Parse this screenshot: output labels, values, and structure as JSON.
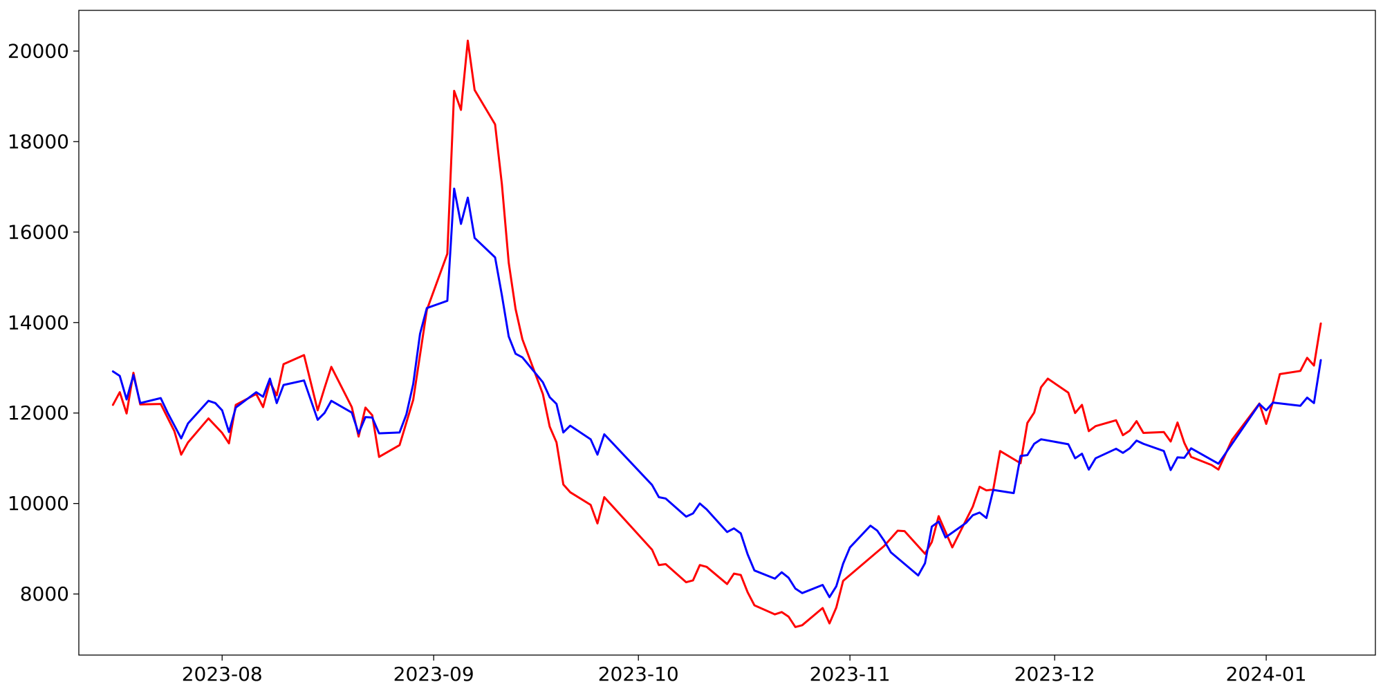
{
  "chart_data": {
    "type": "line",
    "title": "",
    "xlabel": "",
    "ylabel": "",
    "xlim": [
      "2023-07-11",
      "2024-01-17"
    ],
    "ylim": [
      6650,
      20900
    ],
    "grid": false,
    "legend": "none",
    "x_ticks": [
      "2023-08",
      "2023-09",
      "2023-10",
      "2023-11",
      "2023-12",
      "2024-01"
    ],
    "y_ticks": [
      8000,
      10000,
      12000,
      14000,
      16000,
      18000,
      20000
    ],
    "series": [
      {
        "color": "#ff0000",
        "points": [
          [
            "2023-07-16",
            12180
          ],
          [
            "2023-07-17",
            12460
          ],
          [
            "2023-07-18",
            11990
          ],
          [
            "2023-07-19",
            12890
          ],
          [
            "2023-07-20",
            12190
          ],
          [
            "2023-07-23",
            12200
          ],
          [
            "2023-07-25",
            11600
          ],
          [
            "2023-07-26",
            11080
          ],
          [
            "2023-07-27",
            11350
          ],
          [
            "2023-07-30",
            11880
          ],
          [
            "2023-08-01",
            11560
          ],
          [
            "2023-08-02",
            11330
          ],
          [
            "2023-08-03",
            12180
          ],
          [
            "2023-08-06",
            12420
          ],
          [
            "2023-08-07",
            12130
          ],
          [
            "2023-08-08",
            12690
          ],
          [
            "2023-08-09",
            12390
          ],
          [
            "2023-08-10",
            13080
          ],
          [
            "2023-08-13",
            13280
          ],
          [
            "2023-08-15",
            12060
          ],
          [
            "2023-08-16",
            12550
          ],
          [
            "2023-08-17",
            13020
          ],
          [
            "2023-08-20",
            12130
          ],
          [
            "2023-08-21",
            11480
          ],
          [
            "2023-08-22",
            12120
          ],
          [
            "2023-08-23",
            11950
          ],
          [
            "2023-08-24",
            11030
          ],
          [
            "2023-08-27",
            11290
          ],
          [
            "2023-08-29",
            12290
          ],
          [
            "2023-08-31",
            14280
          ],
          [
            "2023-09-03",
            15520
          ],
          [
            "2023-09-04",
            19120
          ],
          [
            "2023-09-05",
            18700
          ],
          [
            "2023-09-06",
            20230
          ],
          [
            "2023-09-07",
            19140
          ],
          [
            "2023-09-10",
            18380
          ],
          [
            "2023-09-11",
            17050
          ],
          [
            "2023-09-12",
            15320
          ],
          [
            "2023-09-13",
            14300
          ],
          [
            "2023-09-14",
            13630
          ],
          [
            "2023-09-17",
            12420
          ],
          [
            "2023-09-18",
            11700
          ],
          [
            "2023-09-19",
            11350
          ],
          [
            "2023-09-20",
            10420
          ],
          [
            "2023-09-21",
            10250
          ],
          [
            "2023-09-24",
            9970
          ],
          [
            "2023-09-25",
            9560
          ],
          [
            "2023-09-26",
            10140
          ],
          [
            "2023-10-03",
            8980
          ],
          [
            "2023-10-04",
            8640
          ],
          [
            "2023-10-05",
            8660
          ],
          [
            "2023-10-08",
            8260
          ],
          [
            "2023-10-09",
            8300
          ],
          [
            "2023-10-10",
            8640
          ],
          [
            "2023-10-11",
            8600
          ],
          [
            "2023-10-14",
            8220
          ],
          [
            "2023-10-15",
            8450
          ],
          [
            "2023-10-16",
            8420
          ],
          [
            "2023-10-17",
            8040
          ],
          [
            "2023-10-18",
            7750
          ],
          [
            "2023-10-21",
            7550
          ],
          [
            "2023-10-22",
            7600
          ],
          [
            "2023-10-23",
            7500
          ],
          [
            "2023-10-24",
            7270
          ],
          [
            "2023-10-25",
            7310
          ],
          [
            "2023-10-28",
            7690
          ],
          [
            "2023-10-29",
            7350
          ],
          [
            "2023-10-30",
            7700
          ],
          [
            "2023-10-31",
            8290
          ],
          [
            "2023-11-06",
            9060
          ],
          [
            "2023-11-08",
            9400
          ],
          [
            "2023-11-09",
            9390
          ],
          [
            "2023-11-12",
            8890
          ],
          [
            "2023-11-13",
            9150
          ],
          [
            "2023-11-14",
            9720
          ],
          [
            "2023-11-16",
            9030
          ],
          [
            "2023-11-19",
            9930
          ],
          [
            "2023-11-20",
            10370
          ],
          [
            "2023-11-21",
            10290
          ],
          [
            "2023-11-22",
            10310
          ],
          [
            "2023-11-23",
            11160
          ],
          [
            "2023-11-26",
            10890
          ],
          [
            "2023-11-27",
            11780
          ],
          [
            "2023-11-28",
            12010
          ],
          [
            "2023-11-29",
            12570
          ],
          [
            "2023-11-30",
            12760
          ],
          [
            "2023-12-03",
            12450
          ],
          [
            "2023-12-04",
            12000
          ],
          [
            "2023-12-05",
            12180
          ],
          [
            "2023-12-06",
            11600
          ],
          [
            "2023-12-07",
            11710
          ],
          [
            "2023-12-10",
            11840
          ],
          [
            "2023-12-11",
            11510
          ],
          [
            "2023-12-12",
            11610
          ],
          [
            "2023-12-13",
            11820
          ],
          [
            "2023-12-14",
            11560
          ],
          [
            "2023-12-17",
            11580
          ],
          [
            "2023-12-18",
            11370
          ],
          [
            "2023-12-19",
            11790
          ],
          [
            "2023-12-20",
            11340
          ],
          [
            "2023-12-21",
            11030
          ],
          [
            "2023-12-24",
            10850
          ],
          [
            "2023-12-25",
            10750
          ],
          [
            "2023-12-27",
            11410
          ],
          [
            "2023-12-31",
            12210
          ],
          [
            "2024-01-01",
            11760
          ],
          [
            "2024-01-02",
            12250
          ],
          [
            "2024-01-03",
            12860
          ],
          [
            "2024-01-06",
            12930
          ],
          [
            "2024-01-07",
            13220
          ],
          [
            "2024-01-08",
            13050
          ],
          [
            "2024-01-09",
            13980
          ]
        ]
      },
      {
        "color": "#0000ff",
        "points": [
          [
            "2023-07-16",
            12920
          ],
          [
            "2023-07-17",
            12820
          ],
          [
            "2023-07-18",
            12300
          ],
          [
            "2023-07-19",
            12840
          ],
          [
            "2023-07-20",
            12220
          ],
          [
            "2023-07-23",
            12330
          ],
          [
            "2023-07-24",
            12010
          ],
          [
            "2023-07-26",
            11440
          ],
          [
            "2023-07-27",
            11770
          ],
          [
            "2023-07-30",
            12270
          ],
          [
            "2023-07-31",
            12220
          ],
          [
            "2023-08-01",
            12060
          ],
          [
            "2023-08-02",
            11580
          ],
          [
            "2023-08-03",
            12120
          ],
          [
            "2023-08-06",
            12460
          ],
          [
            "2023-08-07",
            12360
          ],
          [
            "2023-08-08",
            12760
          ],
          [
            "2023-08-09",
            12220
          ],
          [
            "2023-08-10",
            12620
          ],
          [
            "2023-08-13",
            12720
          ],
          [
            "2023-08-15",
            11850
          ],
          [
            "2023-08-16",
            12000
          ],
          [
            "2023-08-17",
            12270
          ],
          [
            "2023-08-20",
            12010
          ],
          [
            "2023-08-21",
            11550
          ],
          [
            "2023-08-22",
            11910
          ],
          [
            "2023-08-23",
            11900
          ],
          [
            "2023-08-24",
            11550
          ],
          [
            "2023-08-27",
            11570
          ],
          [
            "2023-08-28",
            11970
          ],
          [
            "2023-08-29",
            12640
          ],
          [
            "2023-08-30",
            13750
          ],
          [
            "2023-08-31",
            14320
          ],
          [
            "2023-09-03",
            14480
          ],
          [
            "2023-09-04",
            16960
          ],
          [
            "2023-09-05",
            16180
          ],
          [
            "2023-09-06",
            16760
          ],
          [
            "2023-09-07",
            15870
          ],
          [
            "2023-09-10",
            15440
          ],
          [
            "2023-09-11",
            14600
          ],
          [
            "2023-09-12",
            13690
          ],
          [
            "2023-09-13",
            13310
          ],
          [
            "2023-09-14",
            13230
          ],
          [
            "2023-09-17",
            12680
          ],
          [
            "2023-09-18",
            12350
          ],
          [
            "2023-09-19",
            12200
          ],
          [
            "2023-09-20",
            11570
          ],
          [
            "2023-09-21",
            11720
          ],
          [
            "2023-09-24",
            11420
          ],
          [
            "2023-09-25",
            11080
          ],
          [
            "2023-09-26",
            11530
          ],
          [
            "2023-10-03",
            10410
          ],
          [
            "2023-10-04",
            10140
          ],
          [
            "2023-10-05",
            10110
          ],
          [
            "2023-10-08",
            9710
          ],
          [
            "2023-10-09",
            9780
          ],
          [
            "2023-10-10",
            10000
          ],
          [
            "2023-10-11",
            9870
          ],
          [
            "2023-10-14",
            9370
          ],
          [
            "2023-10-15",
            9450
          ],
          [
            "2023-10-16",
            9340
          ],
          [
            "2023-10-17",
            8880
          ],
          [
            "2023-10-18",
            8520
          ],
          [
            "2023-10-21",
            8340
          ],
          [
            "2023-10-22",
            8480
          ],
          [
            "2023-10-23",
            8360
          ],
          [
            "2023-10-24",
            8120
          ],
          [
            "2023-10-25",
            8020
          ],
          [
            "2023-10-28",
            8200
          ],
          [
            "2023-10-29",
            7930
          ],
          [
            "2023-10-30",
            8170
          ],
          [
            "2023-10-31",
            8670
          ],
          [
            "2023-11-01",
            9030
          ],
          [
            "2023-11-04",
            9510
          ],
          [
            "2023-11-05",
            9400
          ],
          [
            "2023-11-06",
            9180
          ],
          [
            "2023-11-07",
            8920
          ],
          [
            "2023-11-11",
            8410
          ],
          [
            "2023-11-12",
            8680
          ],
          [
            "2023-11-13",
            9490
          ],
          [
            "2023-11-14",
            9600
          ],
          [
            "2023-11-15",
            9250
          ],
          [
            "2023-11-18",
            9570
          ],
          [
            "2023-11-19",
            9740
          ],
          [
            "2023-11-20",
            9800
          ],
          [
            "2023-11-21",
            9680
          ],
          [
            "2023-11-22",
            10300
          ],
          [
            "2023-11-25",
            10230
          ],
          [
            "2023-11-26",
            11050
          ],
          [
            "2023-11-27",
            11070
          ],
          [
            "2023-11-28",
            11320
          ],
          [
            "2023-11-29",
            11420
          ],
          [
            "2023-12-03",
            11310
          ],
          [
            "2023-12-04",
            11000
          ],
          [
            "2023-12-05",
            11100
          ],
          [
            "2023-12-06",
            10750
          ],
          [
            "2023-12-07",
            11000
          ],
          [
            "2023-12-10",
            11210
          ],
          [
            "2023-12-11",
            11120
          ],
          [
            "2023-12-12",
            11220
          ],
          [
            "2023-12-13",
            11390
          ],
          [
            "2023-12-14",
            11320
          ],
          [
            "2023-12-17",
            11160
          ],
          [
            "2023-12-18",
            10740
          ],
          [
            "2023-12-19",
            11020
          ],
          [
            "2023-12-20",
            11010
          ],
          [
            "2023-12-21",
            11220
          ],
          [
            "2023-12-25",
            10880
          ],
          [
            "2023-12-31",
            12200
          ],
          [
            "2024-01-01",
            12060
          ],
          [
            "2024-01-02",
            12230
          ],
          [
            "2024-01-06",
            12160
          ],
          [
            "2024-01-07",
            12340
          ],
          [
            "2024-01-08",
            12220
          ],
          [
            "2024-01-09",
            13170
          ]
        ]
      }
    ]
  }
}
